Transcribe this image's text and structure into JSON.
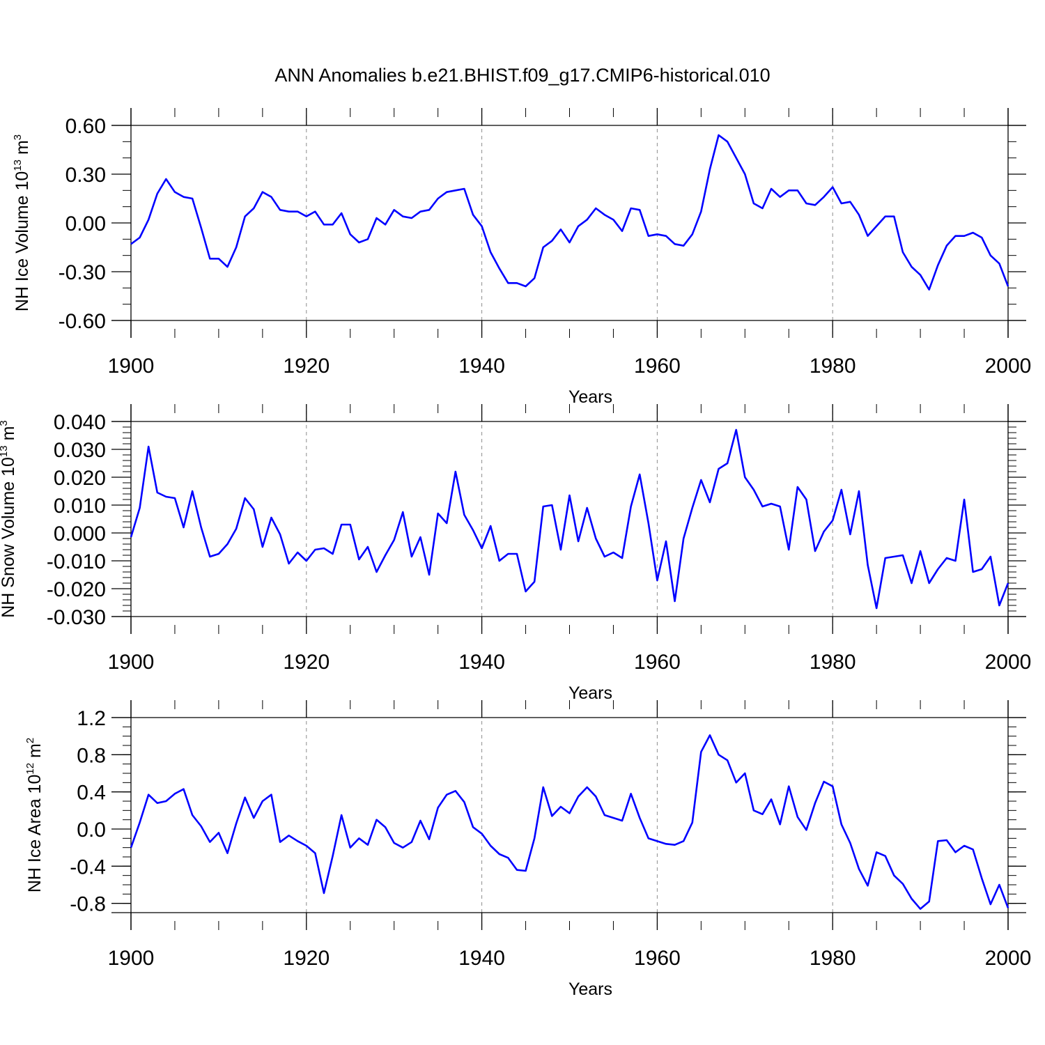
{
  "title": "ANN Anomalies b.e21.BHIST.f09_g17.CMIP6-historical.010",
  "chart_data": [
    {
      "type": "line",
      "title": "",
      "xlabel": "Years",
      "ylabel": {
        "prefix": "NH Ice Volume 10",
        "exp": "13",
        "unit": " m",
        "unit_exp": "3"
      },
      "xlim": [
        1900,
        2000
      ],
      "ylim": [
        -0.6,
        0.6
      ],
      "x_ticks": [
        1900,
        1920,
        1940,
        1960,
        1980,
        2000
      ],
      "x_tick_labels": [
        "1900",
        "1920",
        "1940",
        "1960",
        "1980",
        "2000"
      ],
      "y_ticks": [
        -0.6,
        -0.3,
        0.0,
        0.3,
        0.6
      ],
      "y_tick_labels": [
        "-0.60",
        "-0.30",
        "0.00",
        "0.30",
        "0.60"
      ],
      "y_minor_step": 0.1,
      "x_start": 1900,
      "line_color": "#0000ff",
      "series": [
        {
          "name": "NH Ice Volume",
          "values": [
            -0.13,
            -0.09,
            0.02,
            0.18,
            0.27,
            0.19,
            0.16,
            0.15,
            -0.03,
            -0.22,
            -0.22,
            -0.27,
            -0.15,
            0.04,
            0.09,
            0.19,
            0.16,
            0.08,
            0.07,
            0.07,
            0.04,
            0.07,
            -0.01,
            -0.01,
            0.06,
            -0.07,
            -0.12,
            -0.1,
            0.03,
            -0.01,
            0.08,
            0.04,
            0.03,
            0.07,
            0.08,
            0.15,
            0.19,
            0.2,
            0.21,
            0.05,
            -0.02,
            -0.18,
            -0.28,
            -0.37,
            -0.37,
            -0.39,
            -0.34,
            -0.15,
            -0.11,
            -0.04,
            -0.12,
            -0.02,
            0.02,
            0.09,
            0.05,
            0.02,
            -0.05,
            0.09,
            0.08,
            -0.08,
            -0.07,
            -0.08,
            -0.13,
            -0.14,
            -0.07,
            0.07,
            0.33,
            0.54,
            0.5,
            0.4,
            0.3,
            0.12,
            0.09,
            0.21,
            0.16,
            0.2,
            0.2,
            0.12,
            0.11,
            0.16,
            0.22,
            0.12,
            0.13,
            0.05,
            -0.08,
            -0.02,
            0.04,
            0.04,
            -0.18,
            -0.27,
            -0.32,
            -0.41,
            -0.26,
            -0.14,
            -0.08,
            -0.08,
            -0.06,
            -0.09,
            -0.2,
            -0.25,
            -0.39
          ]
        }
      ]
    },
    {
      "type": "line",
      "title": "",
      "xlabel": "Years",
      "ylabel": {
        "prefix": "NH Snow Volume 10",
        "exp": "13",
        "unit": " m",
        "unit_exp": "3"
      },
      "xlim": [
        1900,
        2000
      ],
      "ylim": [
        -0.03,
        0.04
      ],
      "x_ticks": [
        1900,
        1920,
        1940,
        1960,
        1980,
        2000
      ],
      "x_tick_labels": [
        "1900",
        "1920",
        "1940",
        "1960",
        "1980",
        "2000"
      ],
      "y_ticks": [
        -0.03,
        -0.02,
        -0.01,
        0.0,
        0.01,
        0.02,
        0.03,
        0.04
      ],
      "y_tick_labels": [
        "-0.030",
        "-0.020",
        "-0.010",
        "0.000",
        "0.010",
        "0.020",
        "0.030",
        "0.040"
      ],
      "y_minor_step": 0.002,
      "x_start": 1900,
      "line_color": "#0000ff",
      "series": [
        {
          "name": "NH Snow Volume",
          "values": [
            -0.0015,
            0.009,
            0.031,
            0.0145,
            0.013,
            0.0125,
            0.002,
            0.015,
            0.002,
            -0.0085,
            -0.0075,
            -0.004,
            0.0015,
            0.0125,
            0.0085,
            -0.005,
            0.0055,
            -0.0005,
            -0.011,
            -0.007,
            -0.01,
            -0.006,
            -0.0055,
            -0.0075,
            0.003,
            0.003,
            -0.0095,
            -0.005,
            -0.014,
            -0.008,
            -0.0025,
            0.0075,
            -0.0085,
            -0.0015,
            -0.015,
            0.007,
            0.0035,
            0.022,
            0.0065,
            0.001,
            -0.0055,
            0.0025,
            -0.01,
            -0.0075,
            -0.0075,
            -0.021,
            -0.0175,
            0.0095,
            0.01,
            -0.006,
            0.0135,
            -0.003,
            0.009,
            -0.002,
            -0.0085,
            -0.007,
            -0.009,
            0.0095,
            0.021,
            0.0035,
            -0.017,
            -0.003,
            -0.0245,
            -0.002,
            0.009,
            0.019,
            0.011,
            0.023,
            0.025,
            0.037,
            0.02,
            0.0155,
            0.0095,
            0.0105,
            0.0095,
            -0.006,
            0.0165,
            0.012,
            -0.0065,
            0.0005,
            0.0045,
            0.0155,
            -0.0005,
            0.015,
            -0.0115,
            -0.027,
            -0.009,
            -0.0085,
            -0.008,
            -0.018,
            -0.0065,
            -0.018,
            -0.013,
            -0.009,
            -0.01,
            0.012,
            -0.014,
            -0.013,
            -0.0085,
            -0.026,
            -0.018
          ]
        }
      ]
    },
    {
      "type": "line",
      "title": "",
      "xlabel": "Years",
      "ylabel": {
        "prefix": "NH Ice Area 10",
        "exp": "12",
        "unit": " m",
        "unit_exp": "2"
      },
      "xlim": [
        1900,
        2000
      ],
      "ylim": [
        -0.9,
        1.2
      ],
      "x_ticks": [
        1900,
        1920,
        1940,
        1960,
        1980,
        2000
      ],
      "x_tick_labels": [
        "1900",
        "1920",
        "1940",
        "1960",
        "1980",
        "2000"
      ],
      "y_ticks": [
        -0.8,
        -0.4,
        0.0,
        0.4,
        0.8,
        1.2
      ],
      "y_tick_labels": [
        "-0.8",
        "-0.4",
        "0.0",
        "0.4",
        "0.8",
        "1.2"
      ],
      "y_minor_step": 0.1,
      "x_start": 1900,
      "line_color": "#0000ff",
      "series": [
        {
          "name": "NH Ice Area",
          "values": [
            -0.2,
            0.07,
            0.37,
            0.28,
            0.3,
            0.38,
            0.43,
            0.15,
            0.03,
            -0.14,
            -0.04,
            -0.26,
            0.06,
            0.34,
            0.12,
            0.3,
            0.37,
            -0.14,
            -0.07,
            -0.13,
            -0.18,
            -0.26,
            -0.69,
            -0.29,
            0.15,
            -0.2,
            -0.1,
            -0.17,
            0.1,
            0.02,
            -0.15,
            -0.2,
            -0.14,
            0.09,
            -0.11,
            0.23,
            0.37,
            0.41,
            0.29,
            0.02,
            -0.05,
            -0.18,
            -0.27,
            -0.31,
            -0.44,
            -0.45,
            -0.1,
            0.45,
            0.14,
            0.24,
            0.17,
            0.35,
            0.45,
            0.35,
            0.15,
            0.12,
            0.09,
            0.38,
            0.12,
            -0.1,
            -0.13,
            -0.16,
            -0.17,
            -0.13,
            0.07,
            0.83,
            1.01,
            0.8,
            0.74,
            0.5,
            0.6,
            0.2,
            0.16,
            0.32,
            0.05,
            0.46,
            0.13,
            -0.01,
            0.28,
            0.51,
            0.46,
            0.05,
            -0.15,
            -0.43,
            -0.61,
            -0.25,
            -0.29,
            -0.5,
            -0.59,
            -0.75,
            -0.86,
            -0.78,
            -0.13,
            -0.12,
            -0.25,
            -0.18,
            -0.22,
            -0.53,
            -0.81,
            -0.6,
            -0.85
          ]
        }
      ]
    }
  ]
}
